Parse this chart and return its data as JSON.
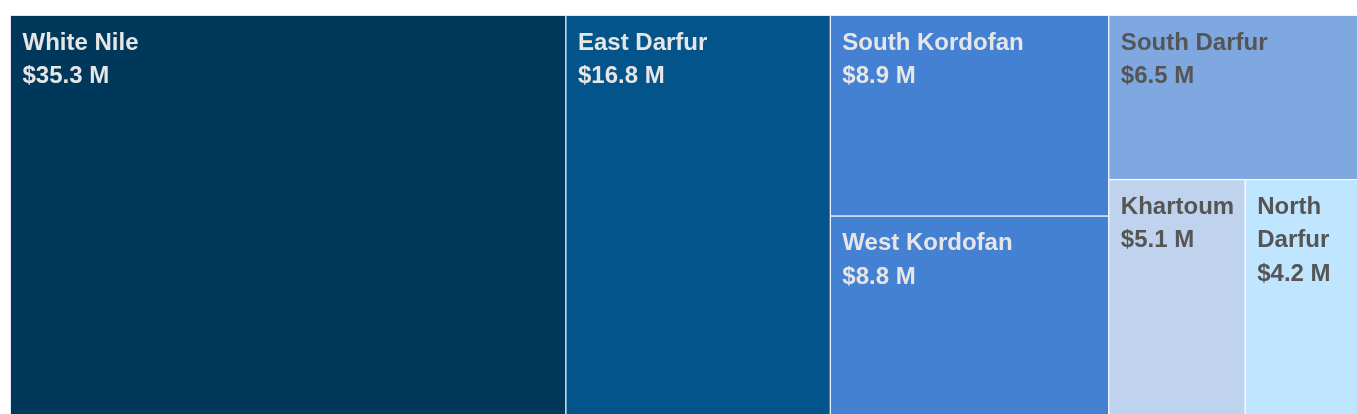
{
  "chart_data": {
    "type": "other",
    "categories": [
      "White Nile",
      "East Darfur",
      "South Kordofan",
      "West Kordofan",
      "South Darfur",
      "Khartoum",
      "North Darfur"
    ],
    "values": [
      35.3,
      16.8,
      8.9,
      8.8,
      6.5,
      5.1,
      4.2
    ],
    "value_labels": [
      "$35.3 M",
      "$16.8 M",
      "$8.9 M",
      "$8.8 M",
      "$6.5 M",
      "$5.1 M",
      "$4.2 M"
    ],
    "colors": [
      "#00385c",
      "#03548a",
      "#4581d3",
      "#4581d3",
      "#7fa8e0",
      "#bfd3ee",
      "#bfe5ff"
    ]
  }
}
